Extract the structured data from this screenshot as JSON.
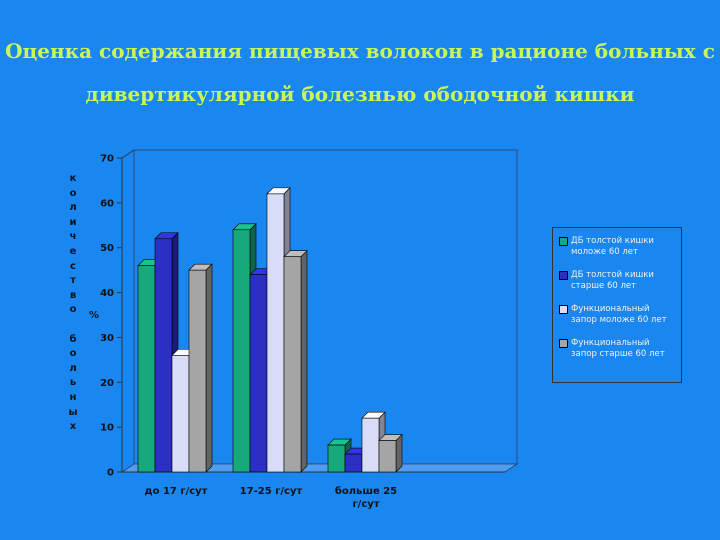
{
  "title": {
    "line1": "Оценка содержания пищевых волокон в рационе больных с",
    "line2": "дивертикулярной болезнью ободочной кишки"
  },
  "chart_data": {
    "type": "bar",
    "categories": [
      "до 17 г/сут",
      "17-25 г/сут",
      "больше 25 г/сут"
    ],
    "series": [
      {
        "name": "ДБ толстой кишки моложе 60 лет",
        "values": [
          46,
          54,
          6
        ],
        "color": "#18a97a"
      },
      {
        "name": "ДБ толстой кишки старше 60 лет",
        "values": [
          52,
          44,
          4
        ],
        "color": "#2b2fc4"
      },
      {
        "name": "Функциональный запор моложе 60 лет",
        "values": [
          26,
          62,
          12
        ],
        "color": "#d9dcf6"
      },
      {
        "name": "Функциональный запор старше 60 лет",
        "values": [
          45,
          48,
          7
        ],
        "color": "#a5a5a5"
      }
    ],
    "ylabel": "количество больных",
    "unit": "%",
    "ylim": [
      0,
      70
    ],
    "yticks": [
      0,
      10,
      20,
      30,
      40,
      50,
      60,
      70
    ],
    "legend_position": "right",
    "grid": false
  }
}
